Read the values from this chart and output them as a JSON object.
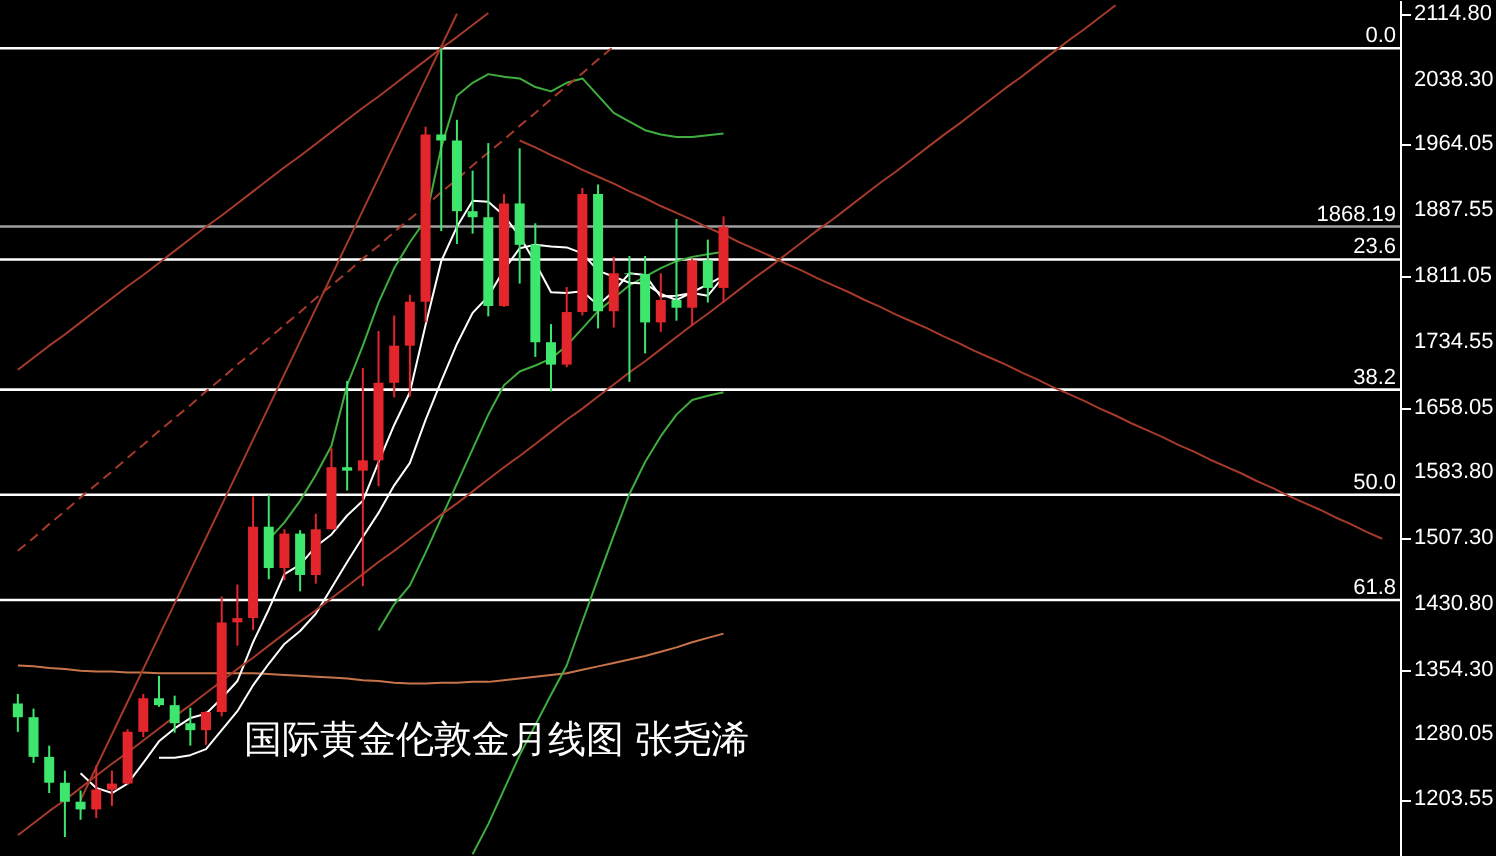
{
  "chart_data": {
    "type": "candlestick",
    "title": "国际黄金伦敦金月线图  张尧浠",
    "categories": [
      null,
      null,
      null,
      null,
      null,
      null,
      null,
      null,
      null,
      null,
      null,
      null,
      null,
      null,
      null,
      null,
      null,
      null,
      null,
      null,
      null,
      null,
      null,
      null,
      null,
      null,
      null,
      null,
      null,
      null,
      null,
      null,
      null,
      null,
      null,
      null,
      null,
      null,
      null,
      null,
      null,
      null,
      null,
      null,
      null,
      null,
      null,
      null,
      null,
      null,
      null,
      null,
      null,
      null,
      null,
      null,
      null,
      null,
      null,
      null,
      null,
      null,
      null,
      null,
      null,
      null,
      null,
      null,
      null,
      null,
      null,
      null,
      null,
      null,
      null,
      null,
      null,
      null,
      null,
      null,
      null,
      null,
      null,
      null,
      null,
      null,
      null,
      null
    ],
    "ohlc": [
      [
        1315,
        1326,
        1282,
        1299
      ],
      [
        1299,
        1309,
        1246,
        1253
      ],
      [
        1253,
        1266,
        1211,
        1223
      ],
      [
        1223,
        1237,
        1160,
        1201
      ],
      [
        1201,
        1214,
        1180,
        1192
      ],
      [
        1192,
        1243,
        1182,
        1215
      ],
      [
        1215,
        1237,
        1196,
        1222
      ],
      [
        1222,
        1285,
        1221,
        1282
      ],
      [
        1282,
        1326,
        1276,
        1321
      ],
      [
        1321,
        1347,
        1311,
        1313
      ],
      [
        1313,
        1324,
        1281,
        1292
      ],
      [
        1292,
        1310,
        1266,
        1284
      ],
      [
        1284,
        1306,
        1267,
        1305
      ],
      [
        1305,
        1439,
        1300,
        1409
      ],
      [
        1409,
        1453,
        1382,
        1414
      ],
      [
        1414,
        1555,
        1400,
        1520
      ],
      [
        1520,
        1557,
        1459,
        1472
      ],
      [
        1472,
        1517,
        1458,
        1512
      ],
      [
        1512,
        1516,
        1445,
        1464
      ],
      [
        1464,
        1535,
        1454,
        1517
      ],
      [
        1517,
        1611,
        1517,
        1589
      ],
      [
        1589,
        1689,
        1562,
        1585
      ],
      [
        1585,
        1704,
        1451,
        1597
      ],
      [
        1597,
        1747,
        1567,
        1687
      ],
      [
        1687,
        1765,
        1670,
        1730
      ],
      [
        1730,
        1789,
        1671,
        1781
      ],
      [
        1781,
        1984,
        1757,
        1975
      ],
      [
        1975,
        2075,
        1863,
        1968
      ],
      [
        1968,
        1992,
        1848,
        1886
      ],
      [
        1886,
        1933,
        1860,
        1879
      ],
      [
        1879,
        1965,
        1764,
        1776
      ],
      [
        1776,
        1906,
        1775,
        1895
      ],
      [
        1895,
        1959,
        1802,
        1847
      ],
      [
        1847,
        1872,
        1717,
        1734
      ],
      [
        1734,
        1755,
        1677,
        1708
      ],
      [
        1708,
        1798,
        1705,
        1769
      ],
      [
        1769,
        1913,
        1765,
        1906
      ],
      [
        1906,
        1917,
        1750,
        1770
      ],
      [
        1770,
        1833,
        1751,
        1814
      ],
      [
        1814,
        1834,
        1688,
        1813
      ],
      [
        1813,
        1834,
        1721,
        1757
      ],
      [
        1757,
        1814,
        1746,
        1783
      ],
      [
        1783,
        1877,
        1759,
        1774
      ],
      [
        1774,
        1831,
        1753,
        1829
      ],
      [
        1829,
        1853,
        1780,
        1797
      ],
      [
        1797,
        1880,
        1780,
        1868
      ],
      null,
      null,
      null,
      null,
      null,
      null,
      null,
      null,
      null,
      null,
      null,
      null,
      null,
      null,
      null,
      null,
      null,
      null,
      null,
      null,
      null,
      null,
      null,
      null,
      null,
      null,
      null,
      null,
      null,
      null,
      null,
      null,
      null,
      null,
      null,
      null,
      null,
      null,
      null,
      null,
      null,
      null
    ],
    "colors": [
      "#3ee66e",
      "#3ee66e",
      "#3ee66e",
      "#3ee66e",
      "#3ee66e",
      "#e3262b",
      "#e3262b",
      "#e3262b",
      "#e3262b",
      "#3ee66e",
      "#3ee66e",
      "#3ee66e",
      "#e3262b",
      "#e3262b",
      "#e3262b",
      "#e3262b",
      "#3ee66e",
      "#e3262b",
      "#3ee66e",
      "#e3262b",
      "#e3262b",
      "#3ee66e",
      "#e3262b",
      "#e3262b",
      "#e3262b",
      "#e3262b",
      "#e3262b",
      "#3ee66e",
      "#3ee66e",
      "#3ee66e",
      "#3ee66e",
      "#e3262b",
      "#3ee66e",
      "#3ee66e",
      "#3ee66e",
      "#e3262b",
      "#e3262b",
      "#3ee66e",
      "#e3262b",
      "#3ee66e",
      "#3ee66e",
      "#e3262b",
      "#3ee66e",
      "#e3262b",
      "#3ee66e",
      "#e3262b",
      null,
      null,
      null,
      null,
      null,
      null,
      null,
      null,
      null,
      null,
      null,
      null,
      null,
      null,
      null,
      null,
      null,
      null,
      null,
      null,
      null,
      null,
      null,
      null,
      null,
      null,
      null,
      null,
      null,
      null,
      null,
      null,
      null,
      null,
      null,
      null,
      null,
      null,
      null,
      null,
      null,
      null
    ],
    "series": [
      {
        "type": "line",
        "color": "#c8744a",
        "values": [
          1359,
          1358,
          1356,
          1355,
          1353,
          1352,
          1352,
          1351,
          1351,
          1350,
          1350,
          1350,
          1350,
          1350,
          1350,
          1350,
          1349,
          1348,
          1347,
          1346,
          1345,
          1344,
          1342,
          1341,
          1339,
          1338,
          1338,
          1339,
          1339,
          1340,
          1340,
          1342,
          1344,
          1346,
          1348,
          1350,
          1354,
          1358,
          1362,
          1366,
          1370,
          1375,
          1380,
          1386,
          1391,
          1396,
          null,
          null,
          null,
          null,
          null,
          null,
          null,
          null,
          null,
          null,
          null,
          null,
          null,
          null,
          null,
          null,
          null,
          null,
          null,
          null,
          null,
          null,
          null,
          null,
          null,
          null,
          null,
          null,
          null,
          null,
          null,
          null,
          null,
          null,
          null,
          null,
          null,
          null,
          null,
          null,
          null,
          null
        ]
      },
      {
        "type": "line",
        "color": "#3fae3f",
        "values": [
          null,
          null,
          null,
          null,
          null,
          null,
          null,
          null,
          null,
          null,
          null,
          null,
          null,
          null,
          null,
          null,
          1505,
          1525,
          1550,
          1580,
          1614,
          1684,
          1730,
          1780,
          1820,
          1850,
          1876,
          1960,
          2020,
          2035,
          2045,
          2042,
          2040,
          2030,
          2025,
          2035,
          2040,
          2020,
          2000,
          1990,
          1980,
          1975,
          1972,
          1972,
          1974,
          1976,
          null,
          null,
          null,
          null,
          null,
          null,
          null,
          null,
          null,
          null,
          null,
          null,
          null,
          null,
          null,
          null,
          null,
          null,
          null,
          null,
          null,
          null,
          null,
          null,
          null,
          null,
          null,
          null,
          null,
          null,
          null,
          null,
          null,
          null,
          null,
          null,
          null,
          null,
          null,
          null,
          null,
          null
        ]
      },
      {
        "type": "line",
        "color": "#3fae3f",
        "values": [
          null,
          null,
          null,
          null,
          null,
          null,
          null,
          null,
          null,
          null,
          null,
          null,
          null,
          null,
          null,
          null,
          null,
          null,
          null,
          null,
          null,
          null,
          null,
          1400,
          1430,
          1452,
          1490,
          1530,
          1570,
          1610,
          1650,
          1684,
          1700,
          1707,
          1715,
          1730,
          1750,
          1770,
          1785,
          1800,
          1810,
          1820,
          1828,
          1833,
          1836,
          1839,
          null,
          null,
          null,
          null,
          null,
          null,
          null,
          null,
          null,
          null,
          null,
          null,
          null,
          null,
          null,
          null,
          null,
          null,
          null,
          null,
          null,
          null,
          null,
          null,
          null,
          null,
          null,
          null,
          null,
          null,
          null,
          null,
          null,
          null,
          null,
          null,
          null,
          null,
          null,
          null,
          null,
          null
        ]
      },
      {
        "type": "line",
        "color": "#3fae3f",
        "values": [
          null,
          null,
          null,
          null,
          null,
          null,
          null,
          null,
          null,
          null,
          null,
          null,
          null,
          null,
          null,
          null,
          null,
          null,
          null,
          null,
          null,
          null,
          null,
          null,
          null,
          null,
          null,
          null,
          null,
          1140,
          1175,
          1215,
          1255,
          1290,
          1325,
          1359,
          1410,
          1460,
          1510,
          1558,
          1595,
          1625,
          1650,
          1667,
          1672,
          1676,
          null,
          null,
          null,
          null,
          null,
          null,
          null,
          null,
          null,
          null,
          null,
          null,
          null,
          null,
          null,
          null,
          null,
          null,
          null,
          null,
          null,
          null,
          null,
          null,
          null,
          null,
          null,
          null,
          null,
          null,
          null,
          null,
          null,
          null,
          null,
          null,
          null,
          null,
          null,
          null,
          null,
          null
        ]
      },
      {
        "type": "line",
        "color": "#ffffff",
        "values": [
          null,
          null,
          null,
          null,
          null,
          null,
          null,
          null,
          null,
          1252,
          1252,
          1255,
          1262,
          1284,
          1306,
          1336,
          1361,
          1384,
          1399,
          1419,
          1449,
          1479,
          1508,
          1536,
          1568,
          1594,
          1644,
          1689,
          1732,
          1768,
          1787,
          1818,
          1843,
          1847,
          1845,
          1844,
          1837,
          1817,
          1810,
          1803,
          1802,
          1790,
          1783,
          1792,
          1801,
          1811,
          null,
          null,
          null,
          null,
          null,
          null,
          null,
          null,
          null,
          null,
          null,
          null,
          null,
          null,
          null,
          null,
          null,
          null,
          null,
          null,
          null,
          null,
          null,
          null,
          null,
          null,
          null,
          null,
          null,
          null,
          null,
          null,
          null,
          null,
          null,
          null,
          null,
          null,
          null,
          null,
          null,
          null
        ]
      },
      {
        "type": "line",
        "color": "#ffffff",
        "values": [
          null,
          null,
          null,
          null,
          1234,
          1217,
          1211,
          1222,
          1246,
          1271,
          1286,
          1298,
          1303,
          1321,
          1341,
          1386,
          1424,
          1465,
          1476,
          1497,
          1511,
          1533,
          1550,
          1595,
          1638,
          1676,
          1754,
          1828,
          1868,
          1898,
          1897,
          1881,
          1857,
          1826,
          1792,
          1791,
          1793,
          1777,
          1793,
          1814,
          1812,
          1787,
          1788,
          1791,
          1788,
          1810,
          null,
          null,
          null,
          null,
          null,
          null,
          null,
          null,
          null,
          null,
          null,
          null,
          null,
          null,
          null,
          null,
          null,
          null,
          null,
          null,
          null,
          null,
          null,
          null,
          null,
          null,
          null,
          null,
          null,
          null,
          null,
          null,
          null,
          null,
          null,
          null,
          null,
          null,
          null,
          null,
          null,
          null
        ]
      },
      {
        "type": "line",
        "color": "#a63a2a",
        "values": [
          null,
          null,
          null,
          null,
          1203,
          1241,
          1279,
          1317,
          1355,
          1393,
          1431,
          1469,
          1507,
          1545,
          1583,
          1621,
          1659,
          1697,
          1735,
          1773,
          1811,
          1849,
          1887,
          1925,
          1963,
          2001,
          2039,
          2077,
          2115,
          null,
          null,
          null,
          null,
          null,
          null,
          null,
          null,
          null,
          null,
          null,
          null,
          null,
          null,
          null,
          null,
          null,
          null,
          null,
          null,
          null,
          null,
          null,
          null,
          null,
          null,
          null,
          null,
          null,
          null,
          null,
          null,
          null,
          null,
          null,
          null,
          null,
          null,
          null,
          null,
          null,
          null,
          null,
          null,
          null,
          null,
          null,
          null,
          null,
          null,
          null,
          null,
          null,
          null,
          null,
          null,
          null,
          null,
          null
        ]
      },
      {
        "type": "line",
        "color": "#a63a2a",
        "values": [
          1702,
          1716,
          1730,
          1743,
          1757,
          1771,
          1785,
          1799,
          1812,
          1826,
          1840,
          1854,
          1868,
          1881,
          1895,
          1909,
          1923,
          1937,
          1950,
          1964,
          1978,
          1992,
          2006,
          2019,
          2033,
          2047,
          2061,
          2075,
          2088,
          2102,
          2116,
          null,
          null,
          null,
          null,
          null,
          null,
          null,
          null,
          null,
          null,
          null,
          null,
          null,
          null,
          null,
          null,
          null,
          null,
          null,
          null,
          null,
          null,
          null,
          null,
          null,
          null,
          null,
          null,
          null,
          null,
          null,
          null,
          null,
          null,
          null,
          null,
          null,
          null,
          null,
          null,
          null,
          null,
          null,
          null,
          null,
          null,
          null,
          null,
          null,
          null,
          null,
          null,
          null,
          null,
          null,
          null,
          null
        ]
      },
      {
        "type": "line",
        "color": "#a63a2a",
        "line_style": "dashed",
        "values": [
          1492,
          1507,
          1523,
          1538,
          1554,
          1569,
          1584,
          1600,
          1615,
          1631,
          1646,
          1661,
          1677,
          1692,
          1708,
          1723,
          1738,
          1754,
          1769,
          1785,
          1800,
          1815,
          1831,
          1846,
          1862,
          1877,
          1892,
          1908,
          1923,
          1939,
          1954,
          1969,
          1985,
          2000,
          2016,
          2031,
          2046,
          2062,
          2077,
          null,
          null,
          null,
          null,
          null,
          null,
          null,
          null,
          null,
          null,
          null,
          null,
          null,
          null,
          null,
          null,
          null,
          null,
          null,
          null,
          null,
          null,
          null,
          null,
          null,
          null,
          null,
          null,
          null,
          null,
          null,
          null,
          null,
          null,
          null,
          null,
          null,
          null,
          null,
          null,
          null,
          null,
          null,
          null,
          null,
          null,
          null,
          null,
          null
        ]
      },
      {
        "type": "line",
        "color": "#a63a2a",
        "values": [
          null,
          null,
          null,
          null,
          null,
          null,
          null,
          null,
          null,
          null,
          null,
          null,
          null,
          null,
          null,
          null,
          null,
          null,
          null,
          null,
          null,
          null,
          null,
          null,
          null,
          null,
          null,
          null,
          null,
          null,
          null,
          null,
          1968,
          1960,
          1951,
          1943,
          1934,
          1926,
          1918,
          1909,
          1901,
          1892,
          1884,
          1876,
          1867,
          1859,
          1850,
          1842,
          1834,
          1825,
          1817,
          1808,
          1800,
          1792,
          1783,
          1775,
          1766,
          1758,
          1750,
          1741,
          1733,
          1724,
          1716,
          1708,
          1699,
          1691,
          1682,
          1674,
          1666,
          1657,
          1649,
          1640,
          1632,
          1624,
          1615,
          1607,
          1598,
          1590,
          1582,
          1573,
          1565,
          1556,
          1548,
          1540,
          1531,
          1523,
          1514,
          1506
        ]
      },
      {
        "type": "line",
        "color": "#a63a2a",
        "values": [
          1162,
          1176,
          1190,
          1203,
          1217,
          1231,
          1245,
          1258,
          1272,
          1286,
          1300,
          1313,
          1327,
          1341,
          1355,
          1368,
          1382,
          1396,
          1410,
          1423,
          1437,
          1451,
          1465,
          1479,
          1492,
          1506,
          1520,
          1534,
          1547,
          1561,
          1575,
          1589,
          1602,
          1616,
          1630,
          1644,
          1657,
          1671,
          1685,
          1699,
          1712,
          1726,
          1740,
          1754,
          1767,
          1781,
          1795,
          1809,
          1822,
          1836,
          1850,
          1864,
          1877,
          1891,
          1905,
          1919,
          1932,
          1946,
          1960,
          1974,
          1987,
          2001,
          2015,
          2029,
          2042,
          2056,
          2070,
          2084,
          2097,
          2111,
          2125,
          null,
          null,
          null,
          null,
          null,
          null,
          null,
          null,
          null,
          null,
          null,
          null,
          null,
          null,
          null,
          null,
          null
        ]
      }
    ],
    "ref_lines": [
      {
        "axis": "y",
        "value": 2075,
        "color": "#ffffff"
      },
      {
        "axis": "y",
        "value": 1868.19,
        "label": "1868.19",
        "color": "#a0a0a0"
      },
      {
        "axis": "y",
        "value": 1830,
        "color": "#ffffff"
      },
      {
        "axis": "y",
        "value": 1679,
        "color": "#ffffff"
      },
      {
        "axis": "y",
        "value": 1557,
        "color": "#ffffff"
      },
      {
        "axis": "y",
        "value": 1435,
        "color": "#ffffff"
      }
    ],
    "annotations": [
      "0.0",
      "23.6",
      "38.2",
      "50.0",
      "61.8"
    ],
    "ylim": [
      1138,
      2131
    ],
    "yticks": [
      {
        "value": 2114.8,
        "label": "2114.80"
      },
      {
        "value": 2038.3,
        "label": "2038.30"
      },
      {
        "value": 1964.05,
        "label": "1964.05"
      },
      {
        "value": 1887.55,
        "label": "1887.55"
      },
      {
        "value": 1811.05,
        "label": "1811.05"
      },
      {
        "value": 1734.55,
        "label": "1734.55"
      },
      {
        "value": 1658.05,
        "label": "1658.05"
      },
      {
        "value": 1583.8,
        "label": "1583.80"
      },
      {
        "value": 1507.3,
        "label": "1507.30"
      },
      {
        "value": 1430.8,
        "label": "1430.80"
      },
      {
        "value": 1354.3,
        "label": "1354.30"
      },
      {
        "value": 1280.05,
        "label": "1280.05"
      },
      {
        "value": 1203.55,
        "label": "1203.55"
      }
    ],
    "tick_labels": "y"
  }
}
